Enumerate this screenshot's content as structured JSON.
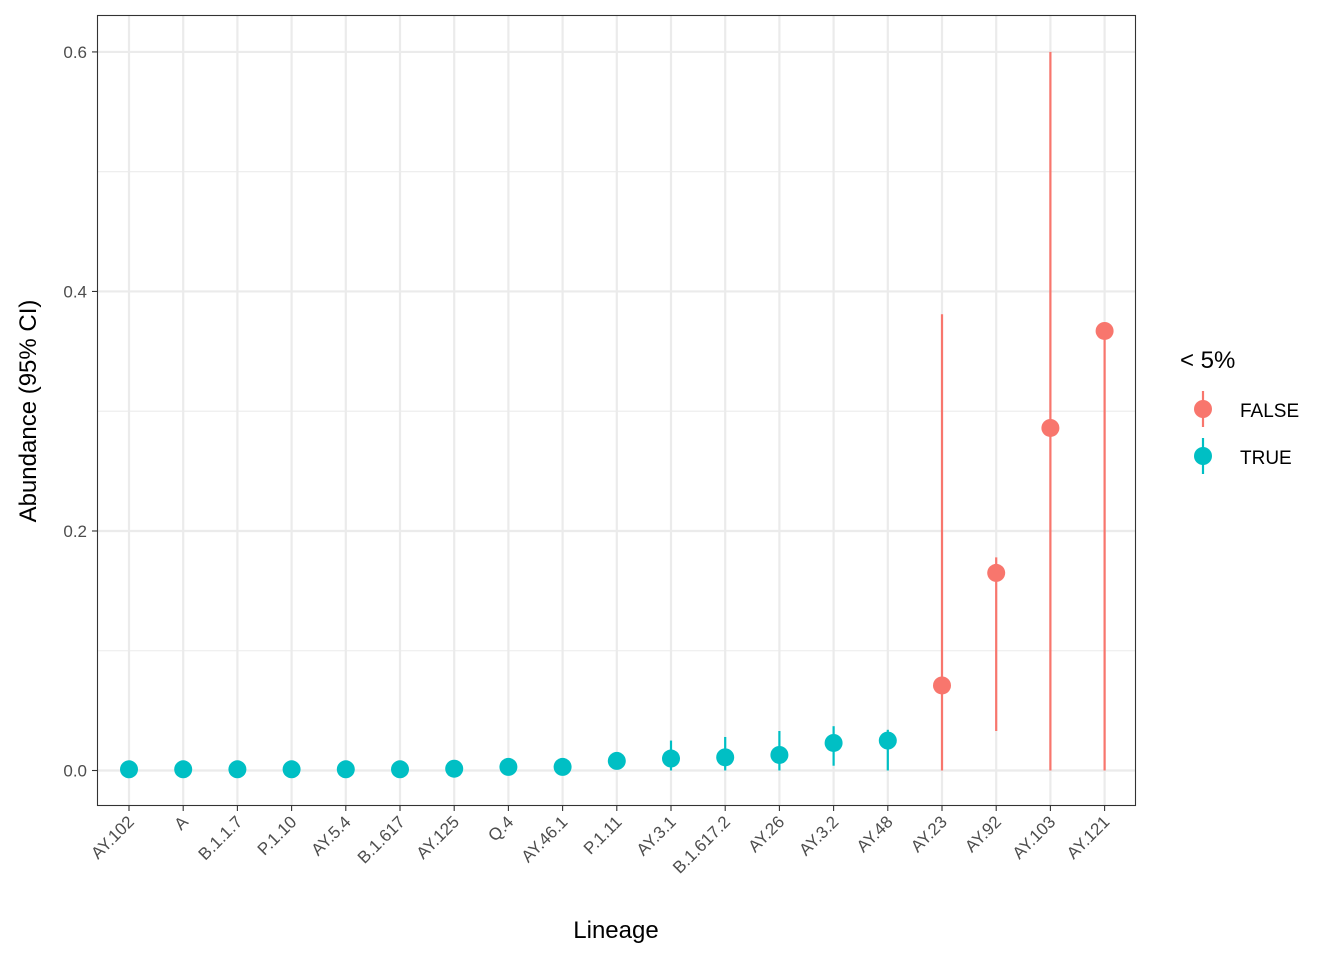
{
  "chart_data": {
    "type": "scatter",
    "subtype": "pointrange",
    "xlabel": "Lineage",
    "ylabel": "Abundance (95% CI)",
    "ylim": [
      -0.0288,
      0.63
    ],
    "yticks": [
      0.0,
      0.2,
      0.4,
      0.6
    ],
    "ytick_labels": [
      "0.0",
      "0.2",
      "0.4",
      "0.6"
    ],
    "grid": true,
    "categories": [
      "AY.102",
      "A",
      "B.1.1.7",
      "P.1.10",
      "AY.5.4",
      "B.1.617",
      "AY.125",
      "Q.4",
      "AY.46.1",
      "P.1.11",
      "AY.3.1",
      "B.1.617.2",
      "AY.26",
      "AY.3.2",
      "AY.48",
      "AY.23",
      "AY.92",
      "AY.103",
      "AY.121"
    ],
    "legend": {
      "title": "< 5%",
      "placement": "right",
      "entries": [
        {
          "label": "FALSE",
          "color": "#F8766D"
        },
        {
          "label": "TRUE",
          "color": "#00BFC4"
        }
      ]
    },
    "points": [
      {
        "x": "AY.102",
        "y": 0.001,
        "lower": null,
        "upper": null,
        "group": "TRUE"
      },
      {
        "x": "A",
        "y": 0.001,
        "lower": null,
        "upper": null,
        "group": "TRUE"
      },
      {
        "x": "B.1.1.7",
        "y": 0.001,
        "lower": null,
        "upper": null,
        "group": "TRUE"
      },
      {
        "x": "P.1.10",
        "y": 0.001,
        "lower": null,
        "upper": null,
        "group": "TRUE"
      },
      {
        "x": "AY.5.4",
        "y": 0.001,
        "lower": null,
        "upper": null,
        "group": "TRUE"
      },
      {
        "x": "B.1.617",
        "y": 0.001,
        "lower": null,
        "upper": null,
        "group": "TRUE"
      },
      {
        "x": "AY.125",
        "y": 0.0015,
        "lower": null,
        "upper": null,
        "group": "TRUE"
      },
      {
        "x": "Q.4",
        "y": 0.003,
        "lower": null,
        "upper": null,
        "group": "TRUE"
      },
      {
        "x": "AY.46.1",
        "y": 0.003,
        "lower": null,
        "upper": null,
        "group": "TRUE"
      },
      {
        "x": "P.1.11",
        "y": 0.008,
        "lower": null,
        "upper": null,
        "group": "TRUE"
      },
      {
        "x": "AY.3.1",
        "y": 0.01,
        "lower": 0.0,
        "upper": 0.025,
        "group": "TRUE"
      },
      {
        "x": "B.1.617.2",
        "y": 0.011,
        "lower": 0.0,
        "upper": 0.028,
        "group": "TRUE"
      },
      {
        "x": "AY.26",
        "y": 0.013,
        "lower": 0.0,
        "upper": 0.033,
        "group": "TRUE"
      },
      {
        "x": "AY.3.2",
        "y": 0.023,
        "lower": 0.004,
        "upper": 0.037,
        "group": "TRUE"
      },
      {
        "x": "AY.48",
        "y": 0.025,
        "lower": 0.0,
        "upper": 0.034,
        "group": "TRUE"
      },
      {
        "x": "AY.23",
        "y": 0.071,
        "lower": 0.0,
        "upper": 0.381,
        "group": "FALSE"
      },
      {
        "x": "AY.92",
        "y": 0.165,
        "lower": 0.033,
        "upper": 0.178,
        "group": "FALSE"
      },
      {
        "x": "AY.103",
        "y": 0.286,
        "lower": 0.0,
        "upper": 0.6,
        "group": "FALSE"
      },
      {
        "x": "AY.121",
        "y": 0.367,
        "lower": 0.0,
        "upper": 0.37,
        "group": "FALSE"
      }
    ]
  }
}
